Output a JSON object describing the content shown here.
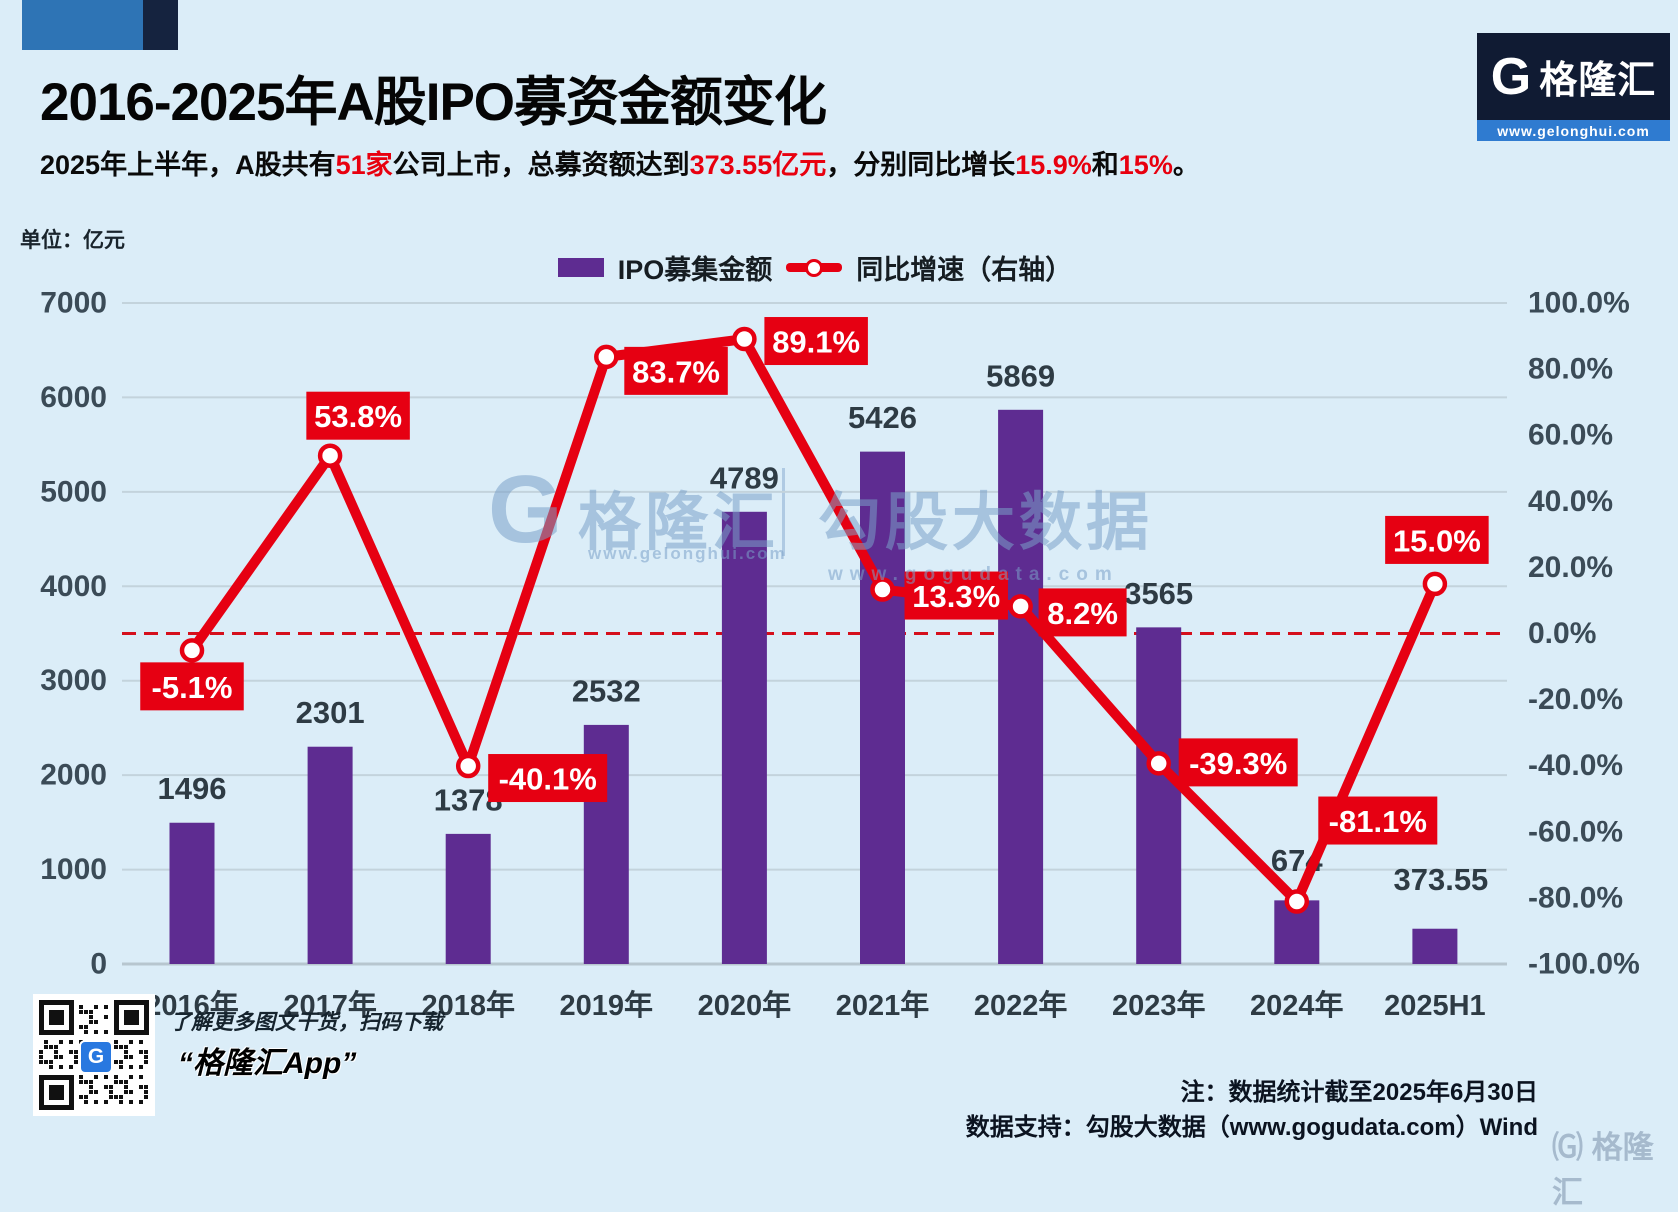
{
  "header": {
    "title": "2016-2025年A股IPO募资金额变化",
    "subtitle_segments": [
      {
        "text": "2025年上半年，A股共有",
        "color": "dark"
      },
      {
        "text": "51家",
        "color": "red"
      },
      {
        "text": "公司上市，总募资额达到",
        "color": "dark"
      },
      {
        "text": "373.55亿元",
        "color": "red"
      },
      {
        "text": "，分别同比增长",
        "color": "dark"
      },
      {
        "text": "15.9%",
        "color": "red"
      },
      {
        "text": "和",
        "color": "dark"
      },
      {
        "text": "15%",
        "color": "red"
      },
      {
        "text": "。",
        "color": "dark"
      }
    ],
    "logo": {
      "g": "G",
      "brand": "格隆汇",
      "url": "www.gelonghui.com"
    }
  },
  "chart_data": {
    "type": "bar",
    "title": "2016-2025年A股IPO募资金额变化",
    "unit_label": "单位：亿元",
    "categories": [
      "2016年",
      "2017年",
      "2018年",
      "2019年",
      "2020年",
      "2021年",
      "2022年",
      "2023年",
      "2024年",
      "2025H1"
    ],
    "series": [
      {
        "name": "IPO募集金额",
        "type": "bar",
        "axis": "left",
        "color": "#5e2c91",
        "values": [
          1496,
          2301,
          1378,
          2532,
          4789,
          5426,
          5869,
          3565,
          674,
          373.55
        ],
        "labels": [
          "1496",
          "2301",
          "1378",
          "2532",
          "4789",
          "5426",
          "5869",
          "3565",
          "674",
          "373.55"
        ]
      },
      {
        "name": "同比增速（右轴）",
        "type": "line",
        "axis": "right",
        "color": "#e60012",
        "values": [
          -5.1,
          53.8,
          -40.1,
          83.7,
          89.1,
          13.3,
          8.2,
          -39.3,
          -81.1,
          15.0
        ],
        "labels": [
          "-5.1%",
          "53.8%",
          "-40.1%",
          "83.7%",
          "89.1%",
          "13.3%",
          "8.2%",
          "-39.3%",
          "-81.1%",
          "15.0%"
        ]
      }
    ],
    "left_axis": {
      "min": 0,
      "max": 7000,
      "step": 1000,
      "labels": [
        "7000",
        "6000",
        "5000",
        "4000",
        "3000",
        "2000",
        "1000",
        "0"
      ]
    },
    "right_axis": {
      "min": -100,
      "max": 100,
      "step": 20,
      "labels": [
        "100.0%",
        "80.0%",
        "60.0%",
        "40.0%",
        "20.0%",
        "0.0%",
        "-20.0%",
        "-40.0%",
        "-60.0%",
        "-80.0%",
        "-100.0%"
      ]
    },
    "zero_line": {
      "value": 0,
      "style": "dashed",
      "color": "#d50f1c"
    },
    "grid": true,
    "legend_position": "top-center",
    "colors": {
      "bar": "#5e2c91",
      "line": "#e60012",
      "grid": "#c3d3dc",
      "axis_text": "#3b4b57",
      "label_text": "#2e3b44"
    }
  },
  "watermarks": {
    "g": "G",
    "brand1": "格隆汇",
    "url1": "www.gelonghui.com",
    "brand2": "勾股大数据",
    "url2": "www.gogudata.com",
    "corner": "格隆汇"
  },
  "qr_panel": {
    "line1": "了解更多图文干货，扫码下载",
    "line2": "“格隆汇App”",
    "badge": "G"
  },
  "notes": {
    "line1": "注：数据统计截至2025年6月30日",
    "line2": "数据支持：勾股大数据（www.gogudata.com）Wind"
  }
}
